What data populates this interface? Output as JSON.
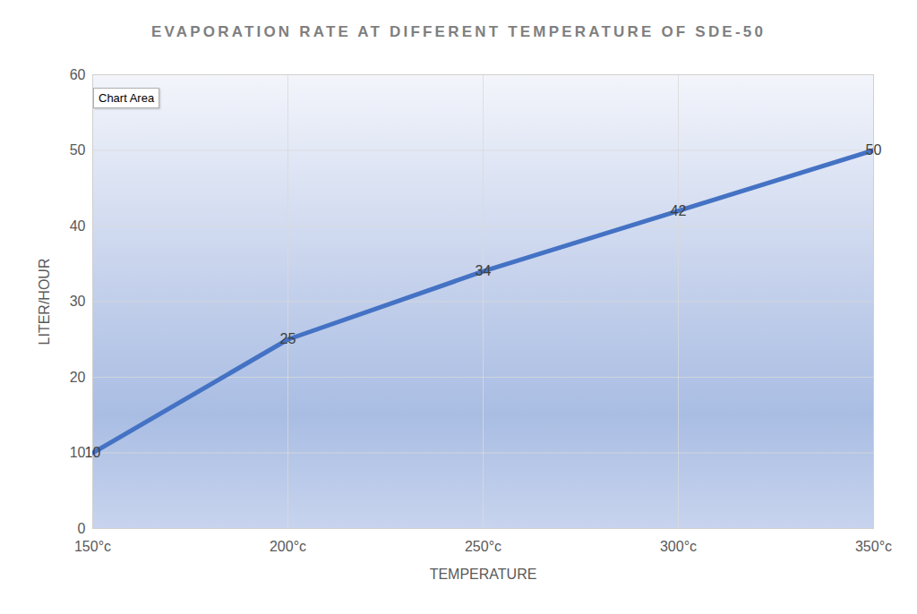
{
  "chart_data": {
    "type": "line",
    "title": "EVAPORATION RATE AT DIFFERENT TEMPERATURE OF SDE-50",
    "x_label": "TEMPERATURE",
    "y_label": "LITER/HOUR",
    "categories": [
      "150°c",
      "200°c",
      "250°c",
      "300°c",
      "350°c"
    ],
    "values": [
      10,
      25,
      34,
      42,
      50
    ],
    "color": "#4472c4",
    "ylim": [
      0,
      60
    ],
    "yticks": [
      0,
      10,
      20,
      30,
      40,
      50,
      60
    ],
    "grid": true,
    "data_labels": true,
    "annotations": [
      "Chart Area"
    ]
  }
}
